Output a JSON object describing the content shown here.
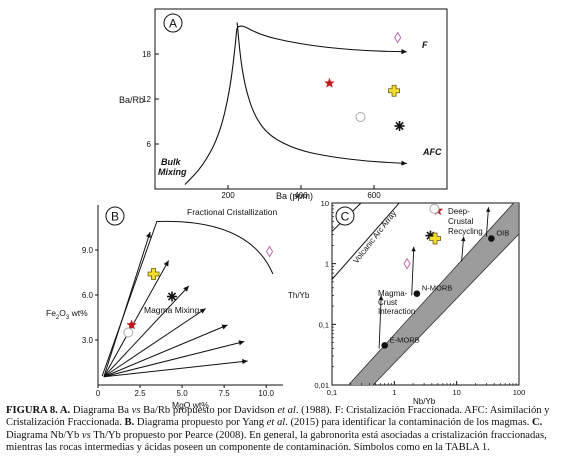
{
  "colors": {
    "star": "#c0161b",
    "cross": "#f2df2a",
    "cross_edge": "#6a5a10",
    "diamond": "#c06ab0",
    "circle": "#aaaaaa",
    "band": "#9c9c9c"
  },
  "chart_data": [
    {
      "panel": "A",
      "type": "line",
      "xlabel": "Ba (ppm)",
      "ylabel": "Ba/Rb",
      "xlim": [
        0,
        800
      ],
      "ylim": [
        0,
        24
      ],
      "xticks": [
        200,
        400,
        600
      ],
      "yticks": [
        6,
        12,
        18
      ],
      "curves": [
        {
          "name": "F",
          "label": "F",
          "points": [
            [
              82,
              0.6
            ],
            [
              130,
              3
            ],
            [
              175,
              7
            ],
            [
              205,
              13
            ],
            [
              222,
              20
            ],
            [
              225,
              22.2
            ],
            [
              290,
              20.5
            ],
            [
              380,
              19.5
            ],
            [
              480,
              18.8
            ],
            [
              590,
              18.4
            ],
            [
              690,
              18.3
            ]
          ]
        },
        {
          "name": "AFC",
          "label": "AFC",
          "points": [
            [
              225,
              22.2
            ],
            [
              235,
              17
            ],
            [
              250,
              13
            ],
            [
              275,
              9.5
            ],
            [
              315,
              7
            ],
            [
              390,
              5.2
            ],
            [
              480,
              4.3
            ],
            [
              580,
              3.7
            ],
            [
              690,
              3.4
            ]
          ]
        }
      ],
      "annotations": [
        "Bulk",
        "Mixing"
      ],
      "points": [
        {
          "symbol": "diamond",
          "x": 665,
          "y": 20.2
        },
        {
          "symbol": "star",
          "x": 478,
          "y": 14.1
        },
        {
          "symbol": "cross",
          "x": 655,
          "y": 13.1
        },
        {
          "symbol": "circle",
          "x": 563,
          "y": 9.6
        },
        {
          "symbol": "asterisk",
          "x": 670,
          "y": 8.4
        }
      ]
    },
    {
      "panel": "B",
      "type": "scatter",
      "xlabel": "MgO wt%",
      "ylabel": "Fe2O3 wt%",
      "xlim": [
        0,
        11
      ],
      "ylim": [
        0,
        12
      ],
      "xticks": [
        0.0,
        2.5,
        5.0,
        7.5,
        10.0
      ],
      "xtick_labels": [
        "0",
        "2.5",
        "5.0",
        "7.5",
        "10.0"
      ],
      "yticks": [
        3.0,
        6.0,
        9.0
      ],
      "yticks_labels": [
        "3.0",
        "6.0",
        "9.0"
      ],
      "annotations": [
        "Fractional Cristallization",
        "Magma Mixing"
      ],
      "points": [
        {
          "symbol": "diamond",
          "x": 10.2,
          "y": 8.9
        },
        {
          "symbol": "cross",
          "x": 3.3,
          "y": 7.4
        },
        {
          "symbol": "asterisk",
          "x": 4.4,
          "y": 5.9
        },
        {
          "symbol": "star",
          "x": 2.0,
          "y": 4.0
        },
        {
          "symbol": "circle",
          "x": 1.8,
          "y": 3.5
        }
      ]
    },
    {
      "panel": "C",
      "type": "scatter",
      "xscale": "log",
      "yscale": "log",
      "xlabel": "Nb/Yb",
      "ylabel": "Th/Yb",
      "xlim": [
        0.1,
        100
      ],
      "ylim": [
        0.01,
        10
      ],
      "xtick_labels": [
        "0,1",
        "1",
        "10",
        "100"
      ],
      "ytick_labels": [
        "0,01",
        "0,1",
        "1",
        "10"
      ],
      "annotations": [
        "Volcanic Arc Array",
        "Deep-",
        "Crustal",
        "Recycling",
        "Magma-",
        "Crust",
        "Interaction"
      ],
      "reference_points": [
        {
          "label": "E-MORB",
          "x": 0.7,
          "y": 0.045
        },
        {
          "label": "N-MORB",
          "x": 2.3,
          "y": 0.32
        },
        {
          "label": "OIB",
          "x": 36,
          "y": 2.6
        }
      ],
      "points": [
        {
          "symbol": "star",
          "x": 5.0,
          "y": 7.5
        },
        {
          "symbol": "circle",
          "x": 4.4,
          "y": 8.0
        },
        {
          "symbol": "asterisk",
          "x": 3.8,
          "y": 2.9
        },
        {
          "symbol": "cross",
          "x": 4.5,
          "y": 2.6
        },
        {
          "symbol": "diamond",
          "x": 1.6,
          "y": 1.0
        }
      ]
    }
  ],
  "caption": {
    "label_main": "FIGURA 8. A.",
    "t1": " Diagrama Ba ",
    "vs1": "vs",
    "t2": " Ba/Rb propuesto por Davidson ",
    "etal1": "et al",
    "t3": ". (1988). F: Cristalización Fraccionada. AFC: Asimilación y Cristalización Fraccionada. ",
    "label_b": "B.",
    "t4": " Diagrama propuesto por Yang ",
    "etal2": "et al",
    "t5": ". (2015) para identificar la contaminación de los magmas. ",
    "label_c": "C.",
    "t6": " Diagrama Nb/Yb ",
    "vs2": "vs",
    "t7": " Th/Yb propuesto por Pearce (2008). En general, la gabronorita está asociadas a cristalización fraccionadas, mientras las rocas intermedias y ácidas poseen un componente de contaminación. Símbolos como en la TABLA 1."
  }
}
